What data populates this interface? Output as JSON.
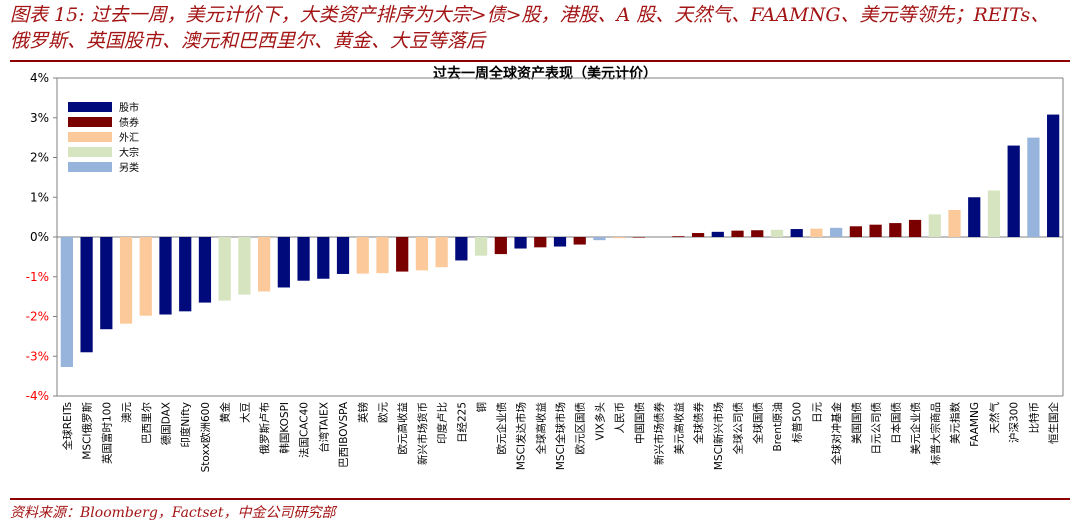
{
  "figure": {
    "title_line1": "图表 15: 过去一周，美元计价下，大类资产排序为大宗>债>股，港股、A 股、天然气、FAAMNG、美元等领先；REITs、",
    "title_line2": "俄罗斯、英国股市、澳元和巴西里尔、黄金、大豆等落后",
    "footer": "资料来源：Bloomberg，Factset，中金公司研究部"
  },
  "colors": {
    "股市": "#000a7a",
    "债券": "#7a0000",
    "外汇": "#fbc99a",
    "大宗": "#d6e4bf",
    "另类": "#97b4dc",
    "title": "#a31515"
  },
  "chart_data": {
    "type": "bar",
    "title": "过去一周全球资产表现（美元计价）",
    "ylim": [
      -4,
      4
    ],
    "yticks": [
      "4%",
      "3%",
      "2%",
      "1%",
      "0%",
      "-1%",
      "-2%",
      "-3%",
      "-4%"
    ],
    "legend": [
      "股市",
      "债券",
      "外汇",
      "大宗",
      "另类"
    ],
    "legend_position": "top-left",
    "categories": [
      "全球REITs",
      "MSCI俄罗斯",
      "英国富时100",
      "澳元",
      "巴西里尔",
      "德国DAX",
      "印度Nifty",
      "Stoxx欧洲600",
      "黄金",
      "大豆",
      "俄罗斯卢布",
      "韩国KOSPI",
      "法国CAC40",
      "台湾TAIEX",
      "巴西IBOVSPA",
      "英镑",
      "欧元",
      "欧元高收益",
      "新兴市场货币",
      "印度卢比",
      "日经225",
      "铜",
      "欧元企业债",
      "MSCI发达市场",
      "全球高收益",
      "MSCI全球市场",
      "欧元区国债",
      "VIX多头",
      "人民币",
      "中国国债",
      "新兴市场债券",
      "美元高收益",
      "全球债券",
      "MSCI新兴市场",
      "全球公司债",
      "全球国债",
      "Brent原油",
      "标普500",
      "日元",
      "全球对冲基金",
      "美国国债",
      "日元公司债",
      "日本国债",
      "美元企业债",
      "标普大宗商品",
      "美元指数",
      "FAAMNG",
      "天然气",
      "沪深300",
      "比特币",
      "恒生国企"
    ],
    "values": [
      -3.27,
      -2.9,
      -2.32,
      -2.18,
      -1.98,
      -1.95,
      -1.87,
      -1.65,
      -1.6,
      -1.45,
      -1.37,
      -1.27,
      -1.1,
      -1.05,
      -0.93,
      -0.92,
      -0.91,
      -0.87,
      -0.84,
      -0.76,
      -0.59,
      -0.47,
      -0.43,
      -0.29,
      -0.26,
      -0.24,
      -0.19,
      -0.08,
      -0.03,
      -0.01,
      0.0,
      0.02,
      0.1,
      0.13,
      0.16,
      0.17,
      0.18,
      0.2,
      0.21,
      0.23,
      0.27,
      0.31,
      0.35,
      0.43,
      0.57,
      0.68,
      1.0,
      1.17,
      2.3,
      2.5,
      3.08
    ],
    "groups": [
      "另类",
      "股市",
      "股市",
      "外汇",
      "外汇",
      "股市",
      "股市",
      "股市",
      "大宗",
      "大宗",
      "外汇",
      "股市",
      "股市",
      "股市",
      "股市",
      "外汇",
      "外汇",
      "债券",
      "外汇",
      "外汇",
      "股市",
      "大宗",
      "债券",
      "股市",
      "债券",
      "股市",
      "债券",
      "另类",
      "外汇",
      "债券",
      "债券",
      "债券",
      "债券",
      "股市",
      "债券",
      "债券",
      "大宗",
      "股市",
      "外汇",
      "另类",
      "债券",
      "债券",
      "债券",
      "债券",
      "大宗",
      "外汇",
      "股市",
      "大宗",
      "股市",
      "另类",
      "股市"
    ]
  }
}
